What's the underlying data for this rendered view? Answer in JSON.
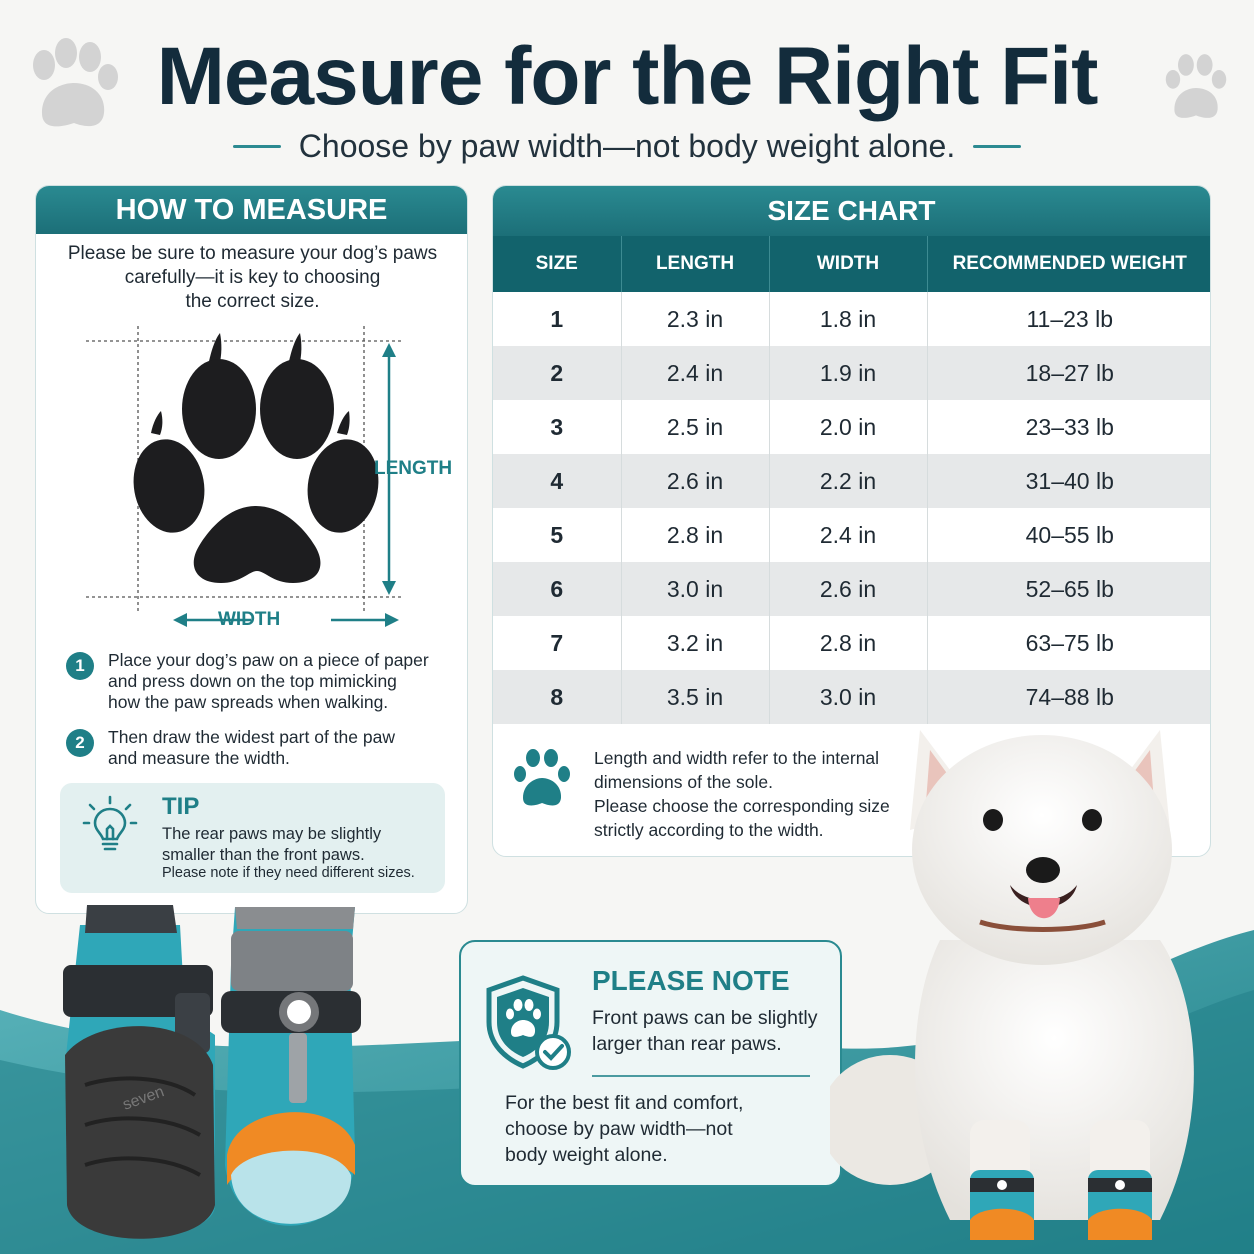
{
  "header": {
    "title": "Measure for the Right Fit",
    "subtitle": "Choose by paw width—not body weight alone."
  },
  "how_to_measure": {
    "heading": "HOW TO MEASURE",
    "intro_lines": [
      "Please be sure to measure your dog’s paws",
      "carefully—it is key to choosing",
      "the correct size."
    ],
    "length_label": "LENGTH",
    "width_label": "WIDTH",
    "steps": [
      {
        "num": "1",
        "lines": [
          "Place your dog’s paw on a piece of paper",
          "and press down on the top mimicking",
          "how the paw spreads when walking."
        ]
      },
      {
        "num": "2",
        "lines": [
          "Then draw the widest part of the paw",
          "and measure the width."
        ]
      }
    ],
    "tip": {
      "title": "TIP",
      "lines": [
        "The rear paws may be slightly",
        "smaller than the front paws."
      ],
      "small": "Please note if they need different sizes."
    }
  },
  "size_chart": {
    "heading": "SIZE CHART",
    "columns": [
      "SIZE",
      "LENGTH",
      "WIDTH",
      "RECOMMENDED WEIGHT"
    ],
    "rows": [
      [
        "1",
        "2.3 in",
        "1.8 in",
        "11–23 lb"
      ],
      [
        "2",
        "2.4 in",
        "1.9 in",
        "18–27 lb"
      ],
      [
        "3",
        "2.5 in",
        "2.0 in",
        "23–33 lb"
      ],
      [
        "4",
        "2.6 in",
        "2.2 in",
        "31–40 lb"
      ],
      [
        "5",
        "2.8 in",
        "2.4 in",
        "40–55 lb"
      ],
      [
        "6",
        "3.0 in",
        "2.6 in",
        "52–65 lb"
      ],
      [
        "7",
        "3.2 in",
        "2.8 in",
        "63–75 lb"
      ],
      [
        "8",
        "3.5 in",
        "3.0 in",
        "74–88 lb"
      ]
    ],
    "note_lines": [
      "Length and width refer to the internal",
      "dimensions of the sole.",
      "Please choose the corresponding size",
      "strictly according to the width."
    ]
  },
  "please_note": {
    "title": "PLEASE NOTE",
    "lines": [
      "Front paws can be slightly",
      "larger than rear paws."
    ],
    "bottom_lines": [
      "For the best fit and comfort,",
      "choose by paw width—not",
      "body weight alone."
    ]
  },
  "boot_brand": "seven",
  "colors": {
    "teal": "#1f7f87",
    "teal_dark": "#12636c",
    "navy": "#132c3c",
    "wave": "#2f9aa3"
  }
}
